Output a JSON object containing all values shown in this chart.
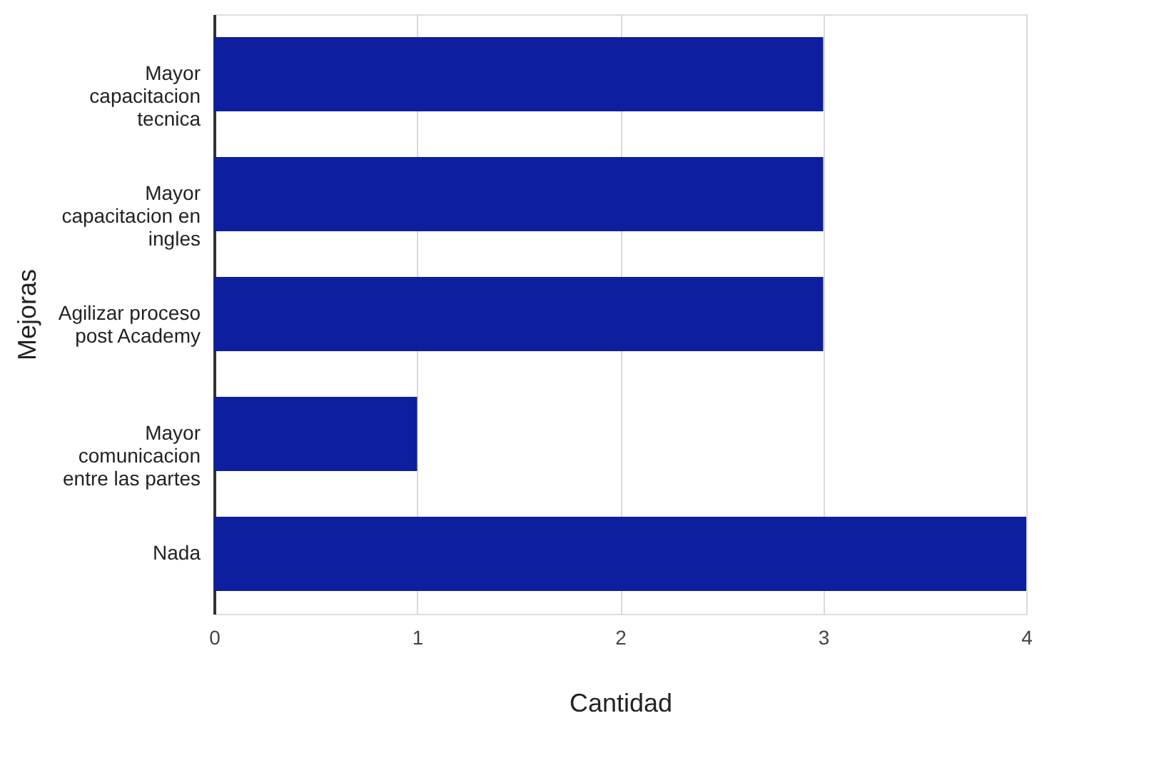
{
  "chart_data": {
    "type": "bar",
    "orientation": "horizontal",
    "categories": [
      "Mayor capacitacion tecnica",
      "Mayor capacitacion en ingles",
      "Agilizar proceso post Academy",
      "Mayor comunicacion entre las partes",
      "Nada"
    ],
    "values": [
      3,
      3,
      3,
      1,
      4
    ],
    "color": "#0d1f9f",
    "xlabel": "Cantidad",
    "ylabel": "Mejoras",
    "xlim": [
      0,
      4
    ],
    "xticks": [
      0,
      1,
      2,
      3,
      4
    ],
    "grid": "x"
  }
}
